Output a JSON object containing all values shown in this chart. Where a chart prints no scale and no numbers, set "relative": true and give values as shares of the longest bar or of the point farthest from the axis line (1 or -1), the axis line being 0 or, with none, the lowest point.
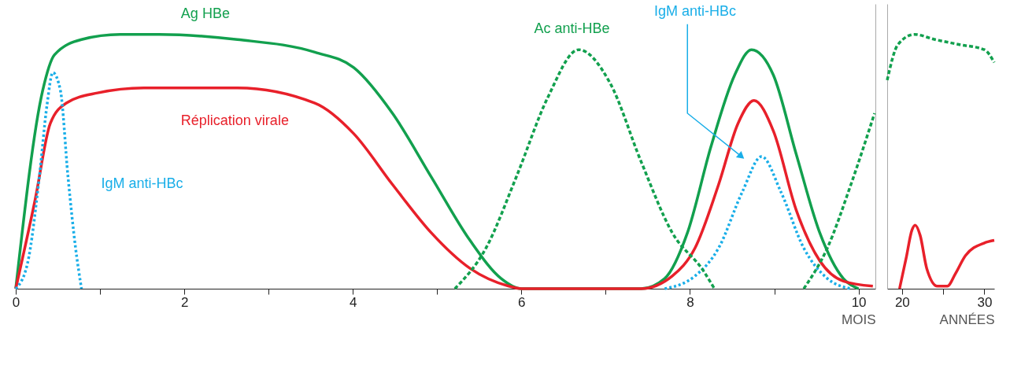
{
  "chart_data": [
    {
      "type": "line",
      "relative": true,
      "xlabel": "MOIS",
      "xlim": [
        0,
        10.2
      ],
      "xticks": [
        0,
        {
          "value": 1,
          "label": null
        },
        2,
        {
          "value": 3,
          "label": null
        },
        4,
        {
          "value": 5,
          "label": null
        },
        6,
        {
          "value": 7,
          "label": null
        },
        8,
        {
          "value": 9,
          "label": null
        },
        10
      ],
      "tick_labels": "x",
      "grid": false,
      "marker": "none",
      "annotations": [
        "IgM anti-HBc"
      ],
      "series": [
        {
          "name": "Ag HBe",
          "color": "#12a04e",
          "line_style": "solid",
          "x": [
            0,
            0.32,
            0.46,
            0.78,
            1.24,
            1.7,
            2.63,
            3.55,
            4.01,
            4.47,
            4.93,
            5.39,
            5.76,
            6.0,
            7.42,
            7.7,
            7.97,
            8.25,
            8.53,
            8.73,
            8.99,
            9.26,
            9.54,
            9.82,
            10.0
          ],
          "values": [
            0,
            0.78,
            0.92,
            0.98,
            1.0,
            1.0,
            0.98,
            0.93,
            0.87,
            0.69,
            0.44,
            0.19,
            0.04,
            0,
            0,
            0.04,
            0.22,
            0.56,
            0.84,
            0.94,
            0.84,
            0.53,
            0.22,
            0.04,
            0
          ]
        },
        {
          "name": "Réplication virale",
          "color": "#e8202a",
          "line_style": "solid",
          "x": [
            0,
            0.23,
            0.41,
            0.6,
            0.97,
            1.52,
            2.63,
            3.55,
            4.01,
            4.47,
            4.93,
            5.39,
            5.85,
            6.0,
            7.42,
            7.79,
            8.06,
            8.34,
            8.57,
            8.76,
            8.99,
            9.26,
            9.54,
            9.82,
            10.17
          ],
          "values": [
            0,
            0.35,
            0.65,
            0.73,
            0.77,
            0.79,
            0.79,
            0.73,
            0.61,
            0.41,
            0.22,
            0.08,
            0.01,
            0,
            0,
            0.05,
            0.16,
            0.41,
            0.65,
            0.74,
            0.62,
            0.31,
            0.11,
            0.03,
            0.01
          ]
        },
        {
          "name": "IgM anti-HBc",
          "color": "#19aee8",
          "line_style": "dotted",
          "x": [
            0,
            0.14,
            0.28,
            0.37,
            0.44,
            0.53,
            0.62,
            0.71,
            0.78,
            5.0,
            7.7,
            8.06,
            8.34,
            8.62,
            8.85,
            9.08,
            9.35,
            9.63,
            9.91
          ],
          "values": [
            0,
            0.1,
            0.44,
            0.72,
            0.85,
            0.78,
            0.44,
            0.16,
            0,
            null,
            0,
            0.05,
            0.16,
            0.38,
            0.52,
            0.38,
            0.16,
            0.04,
            0
          ]
        },
        {
          "name": "Ac anti-HBe",
          "color": "#12a04e",
          "line_style": "dashed",
          "x": [
            5.21,
            5.58,
            5.94,
            6.31,
            6.68,
            7.05,
            7.42,
            7.79,
            8.16,
            8.29,
            8.8,
            9.35,
            9.63,
            9.91,
            10.19
          ],
          "values": [
            0,
            0.16,
            0.44,
            0.75,
            0.94,
            0.81,
            0.5,
            0.22,
            0.07,
            0,
            null,
            0,
            0.16,
            0.41,
            0.69
          ]
        }
      ]
    },
    {
      "type": "line",
      "relative": true,
      "xlabel": "ANNÉES",
      "xlim": [
        18.2,
        31.2
      ],
      "xticks": [
        20,
        {
          "value": 25,
          "label": null
        },
        30
      ],
      "tick_labels": "x",
      "grid": false,
      "marker": "none",
      "series": [
        {
          "color": "#12a04e",
          "line_style": "dashed",
          "x": [
            18.2,
            19.5,
            21.5,
            24,
            27,
            30,
            31.2
          ],
          "values": [
            0.82,
            0.96,
            1.0,
            0.98,
            0.96,
            0.94,
            0.89
          ]
        },
        {
          "color": "#e8202a",
          "line_style": "solid",
          "x": [
            19.7,
            20.5,
            21.2,
            21.6,
            22.2,
            23,
            24.3,
            25.5,
            26.5,
            27.7,
            30,
            31.2
          ],
          "values": [
            0,
            0.12,
            0.23,
            0.25,
            0.21,
            0.08,
            0.01,
            0.01,
            0.06,
            0.13,
            0.18,
            0.19
          ]
        }
      ]
    }
  ]
}
